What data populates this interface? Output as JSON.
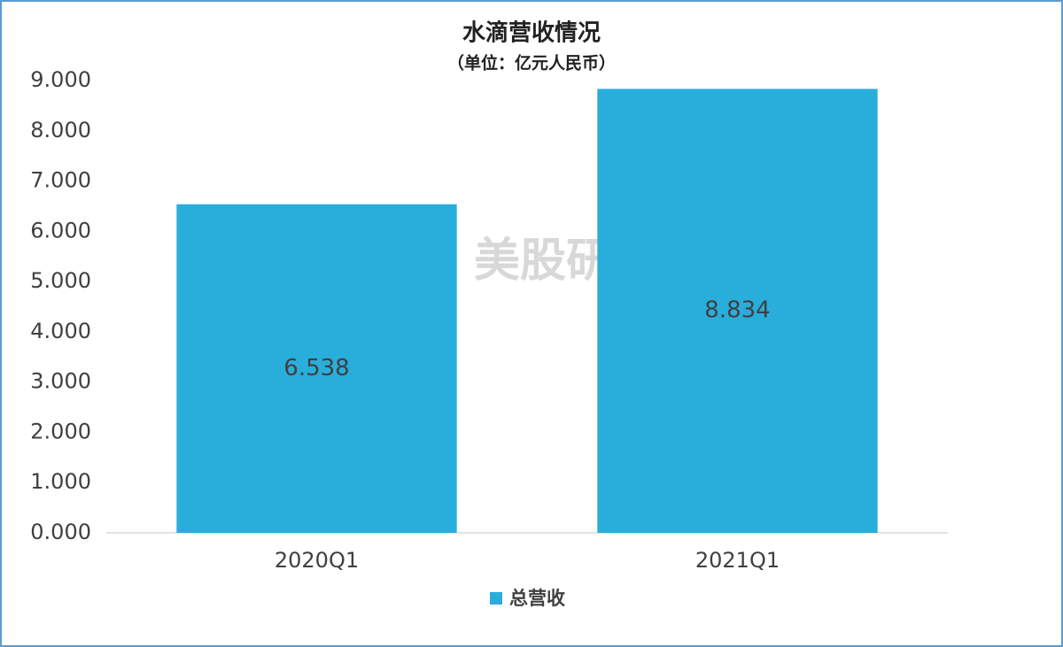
{
  "chart_data": {
    "type": "bar",
    "title": "水滴营收情况",
    "subtitle": "（单位：亿元人民币）",
    "categories": [
      "2020Q1",
      "2021Q1"
    ],
    "series": [
      {
        "name": "总营收",
        "color": "#29aedc",
        "values": [
          6.538,
          8.834
        ]
      }
    ],
    "ylim": [
      0,
      9
    ],
    "yticks": [
      {
        "value": 0,
        "label": "0.000"
      },
      {
        "value": 1,
        "label": "1.000"
      },
      {
        "value": 2,
        "label": "2.000"
      },
      {
        "value": 3,
        "label": "3.000"
      },
      {
        "value": 4,
        "label": "4.000"
      },
      {
        "value": 5,
        "label": "5.000"
      },
      {
        "value": 6,
        "label": "6.000"
      },
      {
        "value": 7,
        "label": "7.000"
      },
      {
        "value": 8,
        "label": "8.000"
      },
      {
        "value": 9,
        "label": "9.000"
      }
    ],
    "grid": false,
    "legend": "bottom",
    "watermark": "美股研究社"
  }
}
